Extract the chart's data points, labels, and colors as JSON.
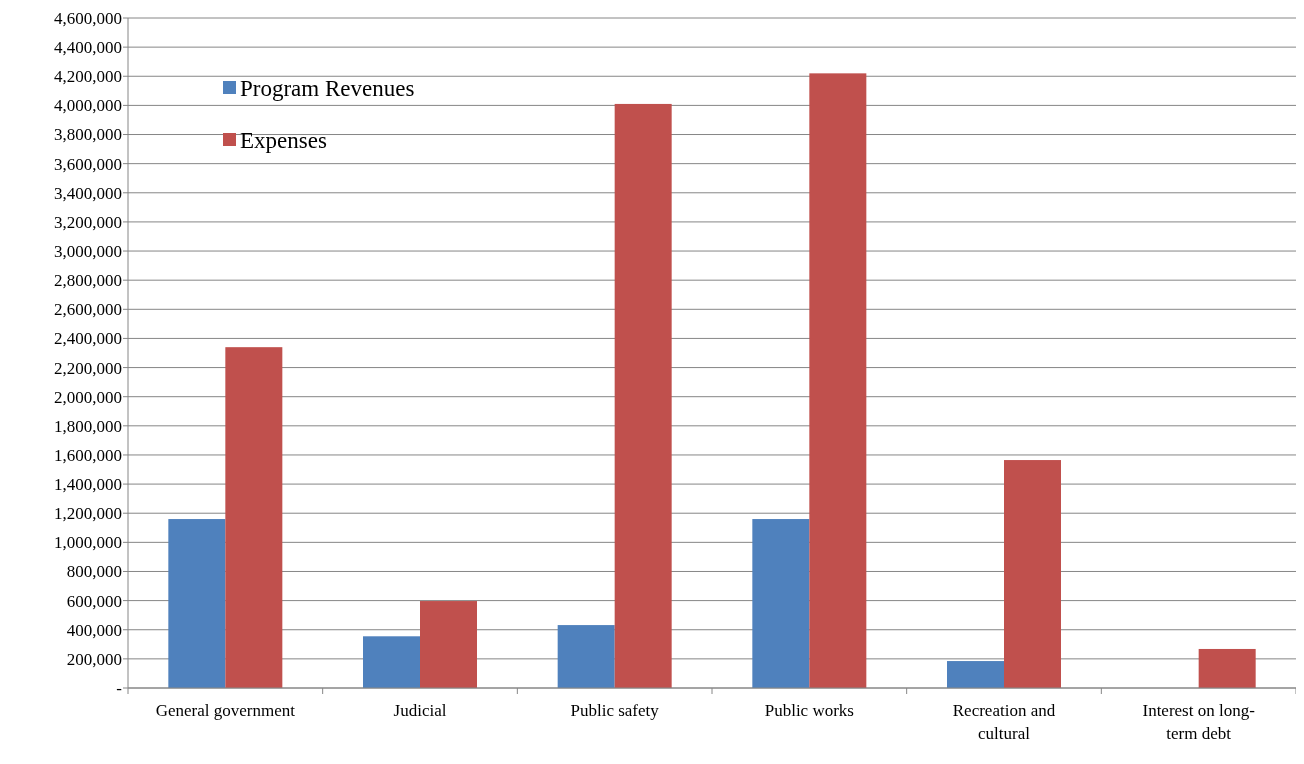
{
  "chart_data": {
    "type": "bar",
    "categories": [
      "General government",
      "Judicial",
      "Public safety",
      "Public works",
      "Recreation and cultural",
      "Interest on long-term debt"
    ],
    "series": [
      {
        "name": "Program Revenues",
        "color": "#4f81bd",
        "values": [
          1160000,
          355000,
          432000,
          1160000,
          185000,
          0
        ]
      },
      {
        "name": "Expenses",
        "color": "#c0504d",
        "values": [
          2340000,
          597000,
          4010000,
          4220000,
          1565000,
          268000
        ]
      }
    ],
    "ylim": [
      0,
      4600000
    ],
    "yticks": [
      {
        "value": 0,
        "label": "-"
      },
      {
        "value": 200000,
        "label": "200,000"
      },
      {
        "value": 400000,
        "label": "400,000"
      },
      {
        "value": 600000,
        "label": "600,000"
      },
      {
        "value": 800000,
        "label": "800,000"
      },
      {
        "value": 1000000,
        "label": "1,000,000"
      },
      {
        "value": 1200000,
        "label": "1,200,000"
      },
      {
        "value": 1400000,
        "label": "1,400,000"
      },
      {
        "value": 1600000,
        "label": "1,600,000"
      },
      {
        "value": 1800000,
        "label": "1,800,000"
      },
      {
        "value": 2000000,
        "label": "2,000,000"
      },
      {
        "value": 2200000,
        "label": "2,200,000"
      },
      {
        "value": 2400000,
        "label": "2,400,000"
      },
      {
        "value": 2600000,
        "label": "2,600,000"
      },
      {
        "value": 2800000,
        "label": "2,800,000"
      },
      {
        "value": 3000000,
        "label": "3,000,000"
      },
      {
        "value": 3200000,
        "label": "3,200,000"
      },
      {
        "value": 3400000,
        "label": "3,400,000"
      },
      {
        "value": 3600000,
        "label": "3,600,000"
      },
      {
        "value": 3800000,
        "label": "3,800,000"
      },
      {
        "value": 4000000,
        "label": "4,000,000"
      },
      {
        "value": 4200000,
        "label": "4,200,000"
      },
      {
        "value": 4400000,
        "label": "4,400,000"
      },
      {
        "value": 4600000,
        "label": "4,600,000"
      }
    ],
    "grid": "y",
    "legend": "top left"
  }
}
